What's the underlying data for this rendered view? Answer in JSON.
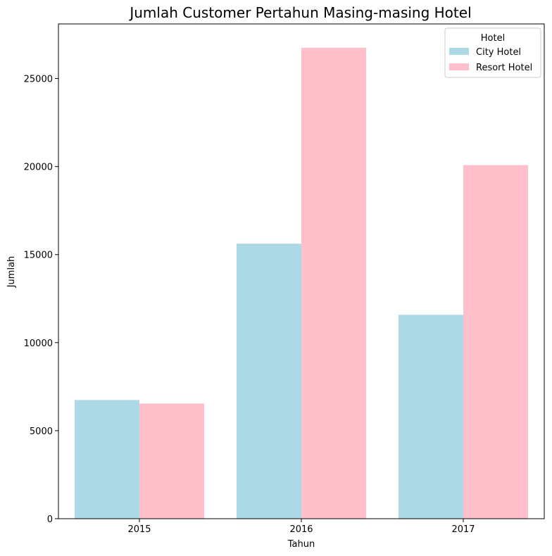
{
  "chart_data": {
    "type": "bar",
    "title": "Jumlah Customer Pertahun Masing-masing Hotel",
    "xlabel": "Tahun",
    "ylabel": "Jumlah",
    "categories": [
      "2015",
      "2016",
      "2017"
    ],
    "series": [
      {
        "name": "City Hotel",
        "color": "#add8e6",
        "values": [
          6740,
          15620,
          11580
        ]
      },
      {
        "name": "Resort Hotel",
        "color": "#ffc0cb",
        "values": [
          6540,
          26750,
          20080
        ]
      }
    ],
    "ylim": [
      0,
      28100
    ],
    "yticks": [
      0,
      5000,
      10000,
      15000,
      20000,
      25000
    ],
    "ytick_labels": [
      "0",
      "5000",
      "10000",
      "15000",
      "20000",
      "25000"
    ],
    "legend": {
      "title": "Hotel",
      "placement": "top-right"
    },
    "grid": false
  }
}
